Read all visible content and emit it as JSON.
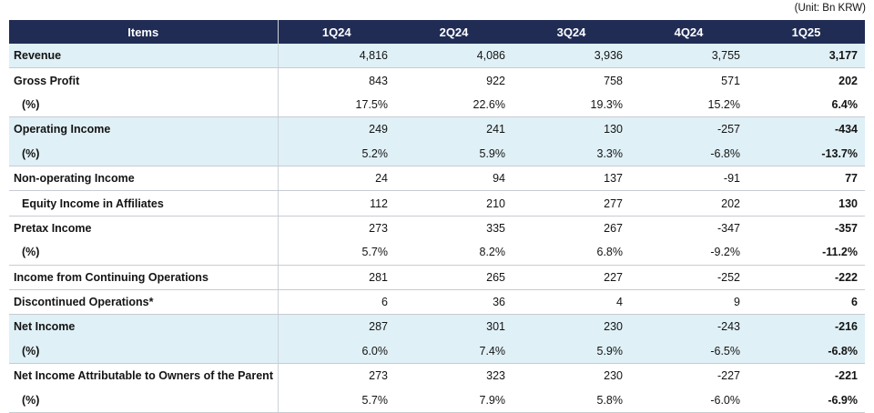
{
  "unit_label": "(Unit: Bn KRW)",
  "colors": {
    "header_bg": "#202C54",
    "header_text": "#FFFFFF",
    "highlight_bg": "#DFF0F6",
    "row_border": "#C7CBD1",
    "col_divider": "#CDD2DA"
  },
  "table": {
    "columns": [
      "Items",
      "1Q24",
      "2Q24",
      "3Q24",
      "4Q24",
      "1Q25"
    ],
    "rows": [
      {
        "label": "Revenue",
        "values": [
          "4,816",
          "4,086",
          "3,936",
          "3,755",
          "3,177"
        ],
        "highlight": true,
        "separator": true,
        "indent": false
      },
      {
        "label": "Gross Profit",
        "values": [
          "843",
          "922",
          "758",
          "571",
          "202"
        ],
        "highlight": false,
        "separator": false,
        "indent": false
      },
      {
        "label": "(%)",
        "values": [
          "17.5%",
          "22.6%",
          "19.3%",
          "15.2%",
          "6.4%"
        ],
        "highlight": false,
        "separator": true,
        "indent": true
      },
      {
        "label": "Operating Income",
        "values": [
          "249",
          "241",
          "130",
          "-257",
          "-434"
        ],
        "highlight": true,
        "separator": false,
        "indent": false
      },
      {
        "label": "(%)",
        "values": [
          "5.2%",
          "5.9%",
          "3.3%",
          "-6.8%",
          "-13.7%"
        ],
        "highlight": true,
        "separator": true,
        "indent": true
      },
      {
        "label": "Non-operating Income",
        "values": [
          "24",
          "94",
          "137",
          "-91",
          "77"
        ],
        "highlight": false,
        "separator": true,
        "indent": false
      },
      {
        "label": "Equity Income in Affiliates",
        "values": [
          "112",
          "210",
          "277",
          "202",
          "130"
        ],
        "highlight": false,
        "separator": true,
        "indent": true
      },
      {
        "label": "Pretax Income",
        "values": [
          "273",
          "335",
          "267",
          "-347",
          "-357"
        ],
        "highlight": false,
        "separator": false,
        "indent": false
      },
      {
        "label": "(%)",
        "values": [
          "5.7%",
          "8.2%",
          "6.8%",
          "-9.2%",
          "-11.2%"
        ],
        "highlight": false,
        "separator": true,
        "indent": true
      },
      {
        "label": "Income from Continuing Operations",
        "values": [
          "281",
          "265",
          "227",
          "-252",
          "-222"
        ],
        "highlight": false,
        "separator": true,
        "indent": false
      },
      {
        "label": "Discontinued Operations*",
        "values": [
          "6",
          "36",
          "4",
          "9",
          "6"
        ],
        "highlight": false,
        "separator": true,
        "indent": false
      },
      {
        "label": "Net Income",
        "values": [
          "287",
          "301",
          "230",
          "-243",
          "-216"
        ],
        "highlight": true,
        "separator": false,
        "indent": false
      },
      {
        "label": "(%)",
        "values": [
          "6.0%",
          "7.4%",
          "5.9%",
          "-6.5%",
          "-6.8%"
        ],
        "highlight": true,
        "separator": true,
        "indent": true
      },
      {
        "label": "Net Income Attributable to Owners of the Parent",
        "values": [
          "273",
          "323",
          "230",
          "-227",
          "-221"
        ],
        "highlight": false,
        "separator": false,
        "indent": false
      },
      {
        "label": "(%)",
        "values": [
          "5.7%",
          "7.9%",
          "5.8%",
          "-6.0%",
          "-6.9%"
        ],
        "highlight": false,
        "separator": true,
        "indent": true
      }
    ]
  }
}
